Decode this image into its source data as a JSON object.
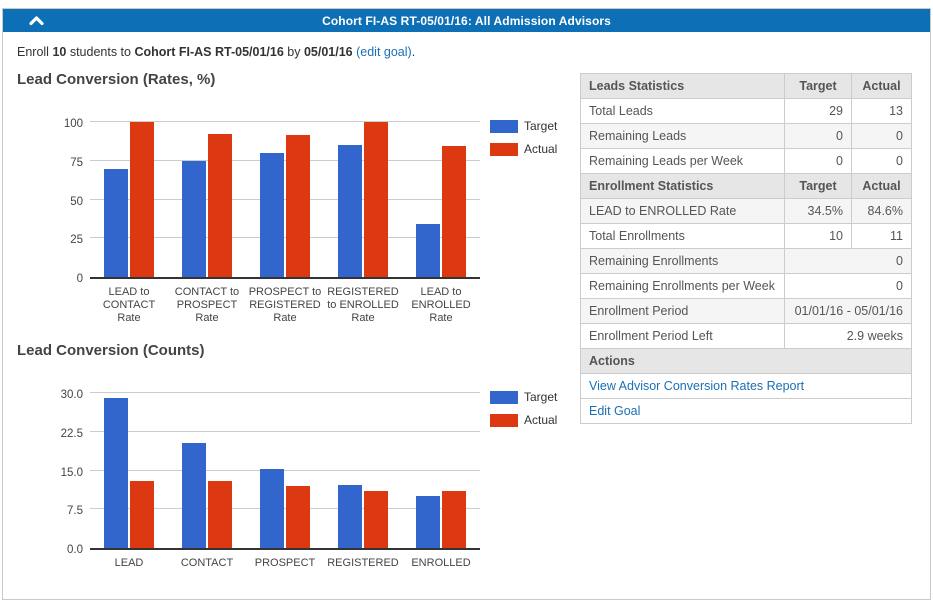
{
  "header": {
    "title": "Cohort FI-AS RT-05/01/16: All Admission Advisors",
    "collapse_icon": "chevron-up-icon"
  },
  "subtitle": {
    "segments": [
      {
        "text": "Enroll "
      },
      {
        "text": "10",
        "bold": true
      },
      {
        "text": " students to "
      },
      {
        "text": "Cohort FI-AS RT-05/01/16",
        "bold": true
      },
      {
        "text": " by "
      },
      {
        "text": "05/01/16",
        "bold": true
      },
      {
        "text": " "
      },
      {
        "text": "(edit goal)",
        "link": true
      },
      {
        "text": "."
      }
    ]
  },
  "chart_data": [
    {
      "type": "bar",
      "title": "Lead Conversion (Rates, %)",
      "categories": [
        "LEAD to\nCONTACT\nRate",
        "CONTACT to\nPROSPECT\nRate",
        "PROSPECT to\nREGISTERED\nRate",
        "REGISTERED\nto ENROLLED\nRate",
        "LEAD to\nENROLLED\nRate"
      ],
      "series": [
        {
          "name": "Target",
          "color": "#3366cc",
          "values": [
            70,
            75,
            80,
            85,
            34.5
          ]
        },
        {
          "name": "Actual",
          "color": "#dc3912",
          "values": [
            100,
            92.3,
            91.7,
            100,
            84.6
          ]
        }
      ],
      "yticks": [
        0,
        25,
        50,
        75,
        100
      ],
      "ytick_labels": [
        "0",
        "25",
        "50",
        "75",
        "100"
      ],
      "ylim": [
        0,
        105
      ],
      "grid": true,
      "legend_position": "right"
    },
    {
      "type": "bar",
      "title": "Lead Conversion (Counts)",
      "categories": [
        "LEAD",
        "CONTACT",
        "PROSPECT",
        "REGISTERED",
        "ENROLLED"
      ],
      "series": [
        {
          "name": "Target",
          "color": "#3366cc",
          "values": [
            29,
            20.3,
            15.2,
            12.2,
            10
          ]
        },
        {
          "name": "Actual",
          "color": "#dc3912",
          "values": [
            13,
            13,
            12,
            11,
            11
          ]
        }
      ],
      "yticks": [
        0,
        7.5,
        15,
        22.5,
        30
      ],
      "ytick_labels": [
        "0.0",
        "7.5",
        "15.0",
        "22.5",
        "30.0"
      ],
      "ylim": [
        0,
        31.5
      ],
      "grid": true,
      "legend_position": "right"
    }
  ],
  "table": {
    "rows": [
      {
        "kind": "header",
        "cells": [
          "Leads Statistics",
          "Target",
          "Actual"
        ]
      },
      {
        "kind": "data",
        "cells": [
          "Total Leads",
          "29",
          "13"
        ]
      },
      {
        "kind": "data",
        "cells": [
          "Remaining Leads",
          "0",
          "0"
        ]
      },
      {
        "kind": "data",
        "cells": [
          "Remaining Leads per Week",
          "0",
          "0"
        ]
      },
      {
        "kind": "header",
        "cells": [
          "Enrollment Statistics",
          "Target",
          "Actual"
        ]
      },
      {
        "kind": "data",
        "cells": [
          "LEAD to ENROLLED Rate",
          "34.5%",
          "84.6%"
        ]
      },
      {
        "kind": "data",
        "cells": [
          "Total Enrollments",
          "10",
          "11"
        ]
      },
      {
        "kind": "data",
        "cells": [
          "Remaining Enrollments",
          "0"
        ]
      },
      {
        "kind": "data",
        "cells": [
          "Remaining Enrollments per Week",
          "0"
        ]
      },
      {
        "kind": "data",
        "cells": [
          "Enrollment Period",
          "01/01/16 - 05/01/16"
        ]
      },
      {
        "kind": "data",
        "cells": [
          "Enrollment Period Left",
          "2.9 weeks"
        ]
      },
      {
        "kind": "header",
        "cells": [
          "Actions"
        ]
      },
      {
        "kind": "link",
        "cells": [
          "View Advisor Conversion Rates Report"
        ]
      },
      {
        "kind": "link",
        "cells": [
          "Edit Goal"
        ]
      }
    ]
  },
  "colors": {
    "header_bar": "#0d70b7",
    "link": "#1b6fb5",
    "target_series": "#3366cc",
    "actual_series": "#dc3912",
    "gridline": "#cccccc",
    "table_header_bg": "#e6e6e6",
    "table_alt_row_bg": "#f5f5f5"
  }
}
